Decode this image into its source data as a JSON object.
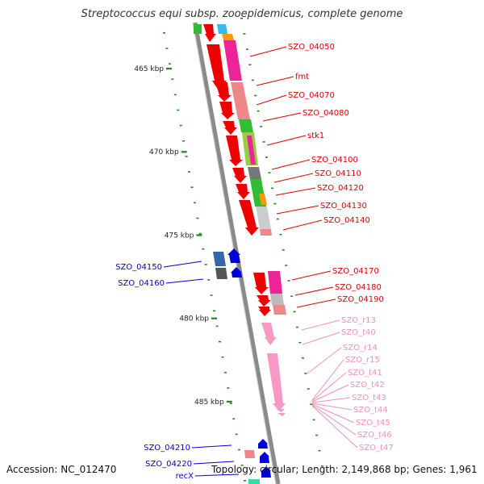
{
  "title": "Streptococcus equi subsp. zooepidemicus, complete genome",
  "accession": "Accession: NC_012470",
  "summary": "Topology: circular; Length: 2,149,868 bp; Genes: 1,961",
  "colors": {
    "forward_label": "#dd0000",
    "reverse_label": "#0000cc",
    "rna_label": "#f090b8",
    "backbone": "#8a8a8a",
    "tick": "#228822"
  },
  "scale_labels": [
    {
      "kbp": 465,
      "text": "465 kbp"
    },
    {
      "kbp": 470,
      "text": "470 kbp"
    },
    {
      "kbp": 475,
      "text": "475 kbp"
    },
    {
      "kbp": 480,
      "text": "480 kbp"
    },
    {
      "kbp": 485,
      "text": "485 kbp"
    }
  ],
  "forward_genes": [
    {
      "text": "SZO_04050"
    },
    {
      "text": "fmt"
    },
    {
      "text": "SZO_04070"
    },
    {
      "text": "SZO_04080"
    },
    {
      "text": "stk1"
    },
    {
      "text": "SZO_04100"
    },
    {
      "text": "SZO_04110"
    },
    {
      "text": "SZO_04120"
    },
    {
      "text": "SZO_04130"
    },
    {
      "text": "SZO_04140"
    },
    {
      "text": "SZO_04170"
    },
    {
      "text": "SZO_04180"
    },
    {
      "text": "SZO_04190"
    }
  ],
  "reverse_genes": [
    {
      "text": "SZO_04150"
    },
    {
      "text": "SZO_04160"
    },
    {
      "text": "SZO_04210"
    },
    {
      "text": "SZO_04220"
    },
    {
      "text": "recX"
    }
  ],
  "rna_genes": [
    {
      "text": "SZO_r13"
    },
    {
      "text": "SZO_t40"
    },
    {
      "text": "SZO_r14"
    },
    {
      "text": "SZO_r15"
    },
    {
      "text": "SZO_t41"
    },
    {
      "text": "SZO_t42"
    },
    {
      "text": "SZO_t43"
    },
    {
      "text": "SZO_t44"
    },
    {
      "text": "SZO_t45"
    },
    {
      "text": "SZO_t46"
    },
    {
      "text": "SZO_t47"
    }
  ]
}
